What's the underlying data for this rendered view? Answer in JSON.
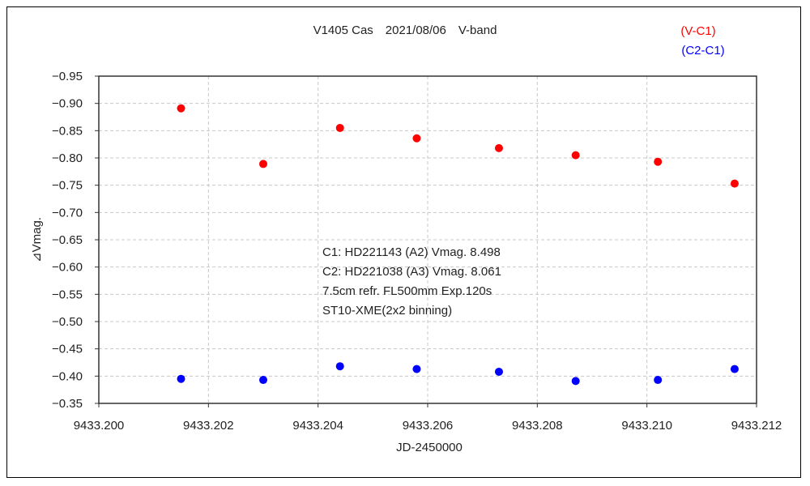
{
  "chart_data": {
    "type": "scatter",
    "title": "V1405 Cas　2021/08/06　V-band",
    "xlabel": "JD-2450000",
    "ylabel": "⊿Vmag.",
    "xlim": [
      9433.2,
      9433.212
    ],
    "ylim": [
      -0.95,
      -0.35
    ],
    "y_inverted": true,
    "grid": true,
    "xticks": [
      "9433.200",
      "9433.202",
      "9433.204",
      "9433.206",
      "9433.208",
      "9433.210",
      "9433.212"
    ],
    "yticks": [
      "-0.95",
      "-0.90",
      "-0.85",
      "-0.80",
      "-0.75",
      "-0.70",
      "-0.65",
      "-0.60",
      "-0.55",
      "-0.50",
      "-0.45",
      "-0.40",
      "-0.35"
    ],
    "legend_placement": "top-right",
    "series": [
      {
        "name": "(V-C1)",
        "color": "#ff0000",
        "x": [
          9433.2015,
          9433.203,
          9433.2044,
          9433.2058,
          9433.2073,
          9433.2087,
          9433.2102,
          9433.2116
        ],
        "y": [
          -0.891,
          -0.789,
          -0.855,
          -0.836,
          -0.818,
          -0.805,
          -0.793,
          -0.753
        ]
      },
      {
        "name": "(C2-C1)",
        "color": "#0000ff",
        "x": [
          9433.2015,
          9433.203,
          9433.2044,
          9433.2058,
          9433.2073,
          9433.2087,
          9433.2102,
          9433.2116
        ],
        "y": [
          -0.395,
          -0.393,
          -0.418,
          -0.413,
          -0.408,
          -0.391,
          -0.393,
          -0.413
        ]
      }
    ],
    "annotations": [
      "C1: HD221143 (A2) Vmag. 8.498",
      "C2: HD221038 (A3) Vmag. 8.061",
      "7.5cm refr. FL500mm Exp.120s",
      "ST10-XME(2x2 binning)"
    ]
  }
}
